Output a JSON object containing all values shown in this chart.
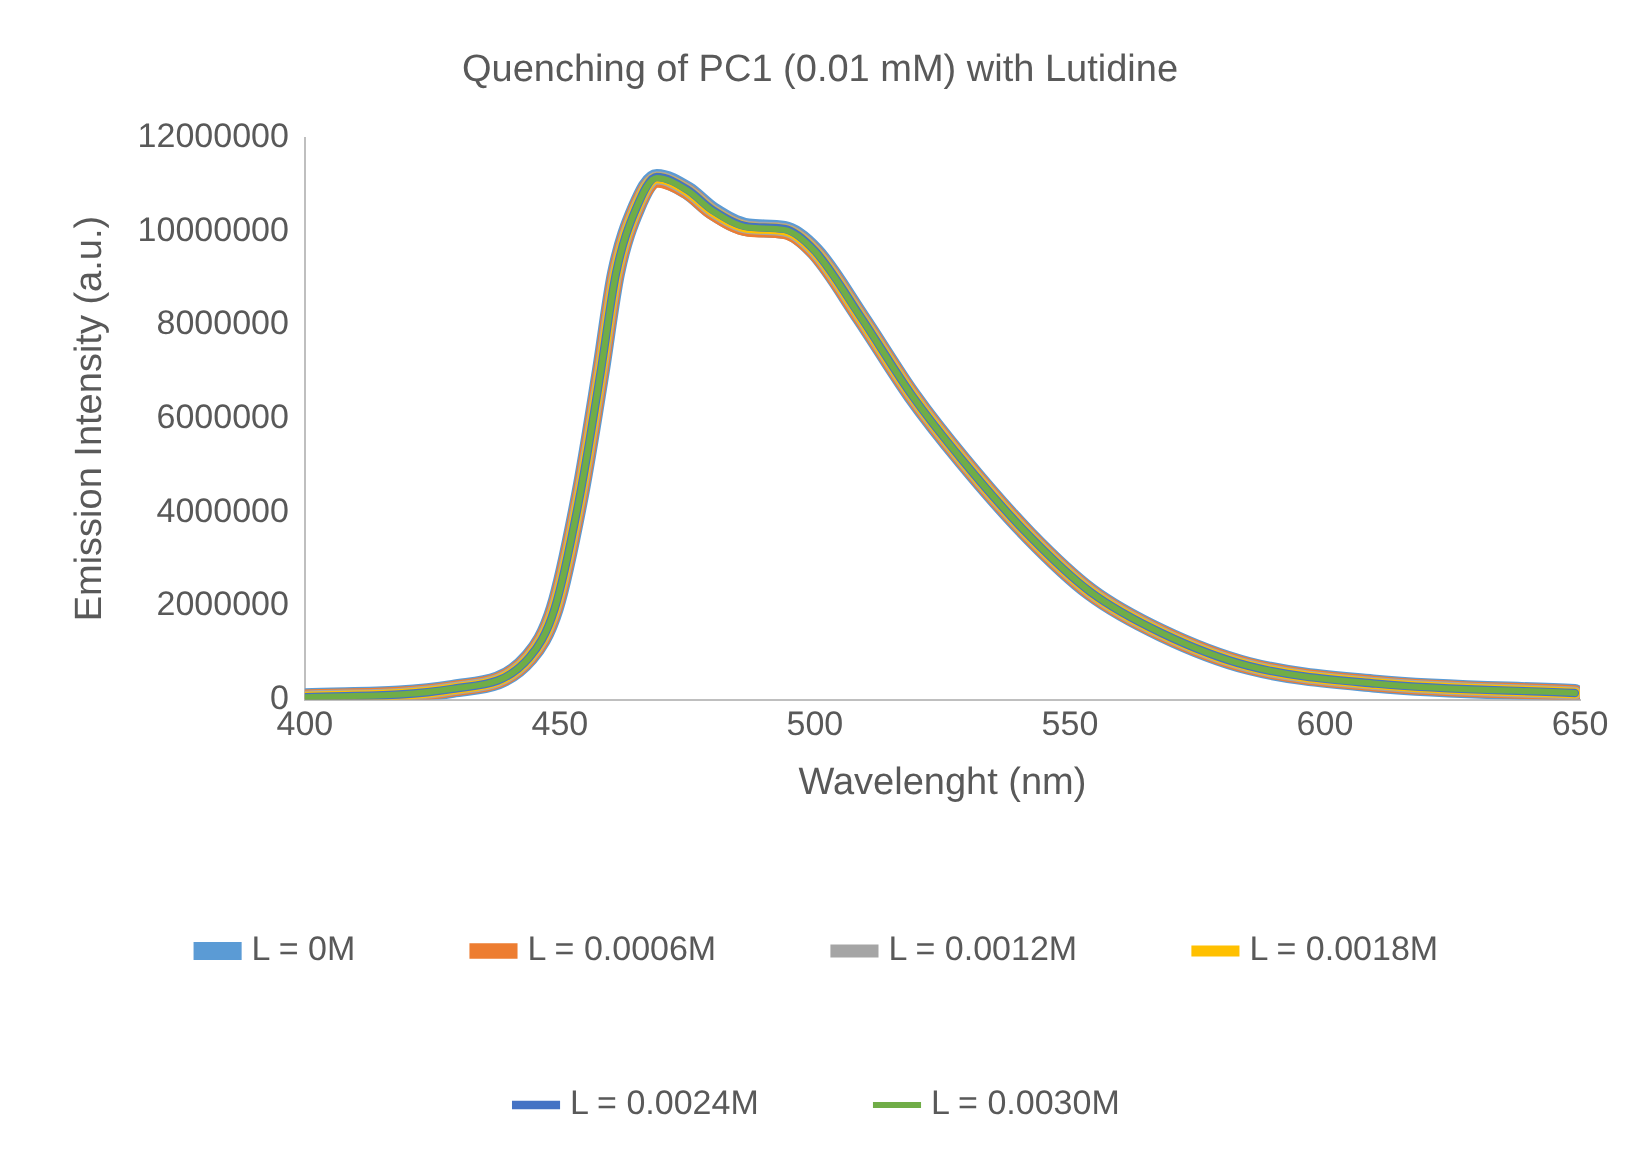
{
  "chart_data": {
    "type": "line",
    "title": "Quenching of PC1 (0.01 mM) with Lutidine",
    "xlabel": "Wavelenght (nm)",
    "ylabel": "Emission Intensity (a.u.)",
    "x": [
      400,
      429,
      444,
      449,
      454,
      458,
      461,
      465,
      469,
      475,
      480,
      487,
      494,
      500,
      509,
      519,
      529,
      542,
      554,
      568,
      585,
      610,
      649
    ],
    "series": [
      {
        "name": "L = 0M",
        "color": "#5b9bd5",
        "values": [
          50000,
          230000,
          900000,
          1950000,
          4400000,
          7000000,
          9100000,
          10500000,
          11140000,
          10870000,
          10430000,
          10080000,
          10030000,
          9570000,
          8160000,
          6500000,
          5100000,
          3500000,
          2300000,
          1420000,
          720000,
          340000,
          140000
        ]
      },
      {
        "name": "L = 0.0006M",
        "color": "#ed7d31",
        "values": [
          50000,
          230000,
          900000,
          1950000,
          4400000,
          7000000,
          9100000,
          10500000,
          11100000,
          10850000,
          10400000,
          10050000,
          10000000,
          9550000,
          8150000,
          6500000,
          5100000,
          3500000,
          2300000,
          1420000,
          720000,
          340000,
          140000
        ]
      },
      {
        "name": "L = 0.0012M",
        "color": "#a5a5a5",
        "values": [
          50000,
          230000,
          900000,
          1950000,
          4400000,
          7000000,
          9100000,
          10500000,
          11140000,
          10870000,
          10430000,
          10080000,
          10030000,
          9570000,
          8160000,
          6500000,
          5100000,
          3500000,
          2300000,
          1420000,
          720000,
          340000,
          140000
        ]
      },
      {
        "name": "L = 0.0018M",
        "color": "#ffc000",
        "values": [
          50000,
          230000,
          900000,
          1950000,
          4400000,
          7000000,
          9100000,
          10500000,
          11140000,
          10870000,
          10430000,
          10080000,
          10030000,
          9570000,
          8160000,
          6500000,
          5100000,
          3500000,
          2300000,
          1420000,
          720000,
          340000,
          140000
        ]
      },
      {
        "name": "L = 0.0024M",
        "color": "#4472c4",
        "values": [
          50000,
          230000,
          900000,
          1950000,
          4400000,
          7000000,
          9100000,
          10500000,
          11160000,
          10890000,
          10450000,
          10100000,
          10050000,
          9580000,
          8170000,
          6500000,
          5100000,
          3500000,
          2300000,
          1420000,
          720000,
          340000,
          140000
        ]
      },
      {
        "name": "L = 0.0030M",
        "color": "#70ad47",
        "values": [
          50000,
          230000,
          900000,
          1950000,
          4400000,
          7000000,
          9100000,
          10500000,
          11140000,
          10870000,
          10430000,
          10080000,
          10030000,
          9570000,
          8160000,
          6500000,
          5100000,
          3500000,
          2300000,
          1420000,
          720000,
          340000,
          140000
        ]
      }
    ],
    "xlim": [
      400,
      650
    ],
    "xticks": [
      400,
      450,
      500,
      550,
      600,
      650
    ],
    "ylim": [
      0,
      12000000
    ],
    "yticks": [
      0,
      2000000,
      4000000,
      6000000,
      8000000,
      10000000,
      12000000
    ],
    "grid": false,
    "legend": "bottom",
    "marker": "none",
    "line_style": "solid"
  }
}
